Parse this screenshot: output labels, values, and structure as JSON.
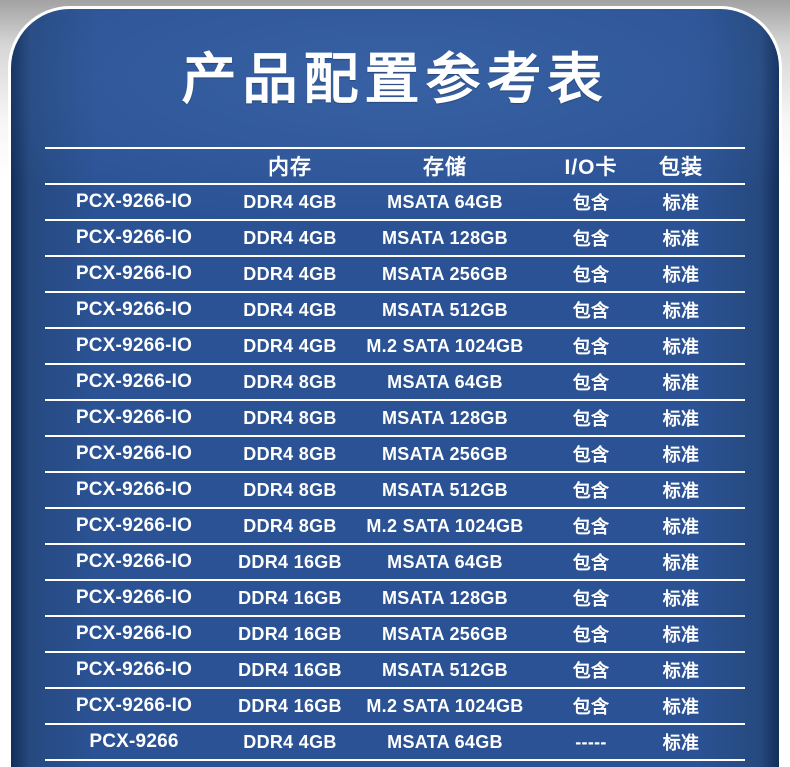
{
  "title": "产品配置参考表",
  "table": {
    "column_keys": [
      "product",
      "memory",
      "storage",
      "io_card",
      "packaging"
    ],
    "columns": [
      "",
      "内存",
      "存储",
      "I/O卡",
      "包装"
    ],
    "rows": [
      [
        "PCX-9266-IO",
        "DDR4 4GB",
        "MSATA 64GB",
        "包含",
        "标准"
      ],
      [
        "PCX-9266-IO",
        "DDR4 4GB",
        "MSATA 128GB",
        "包含",
        "标准"
      ],
      [
        "PCX-9266-IO",
        "DDR4 4GB",
        "MSATA 256GB",
        "包含",
        "标准"
      ],
      [
        "PCX-9266-IO",
        "DDR4 4GB",
        "MSATA 512GB",
        "包含",
        "标准"
      ],
      [
        "PCX-9266-IO",
        "DDR4 4GB",
        "M.2 SATA 1024GB",
        "包含",
        "标准"
      ],
      [
        "PCX-9266-IO",
        "DDR4 8GB",
        "MSATA 64GB",
        "包含",
        "标准"
      ],
      [
        "PCX-9266-IO",
        "DDR4 8GB",
        "MSATA 128GB",
        "包含",
        "标准"
      ],
      [
        "PCX-9266-IO",
        "DDR4 8GB",
        "MSATA 256GB",
        "包含",
        "标准"
      ],
      [
        "PCX-9266-IO",
        "DDR4 8GB",
        "MSATA 512GB",
        "包含",
        "标准"
      ],
      [
        "PCX-9266-IO",
        "DDR4 8GB",
        "M.2 SATA 1024GB",
        "包含",
        "标准"
      ],
      [
        "PCX-9266-IO",
        "DDR4 16GB",
        "MSATA 64GB",
        "包含",
        "标准"
      ],
      [
        "PCX-9266-IO",
        "DDR4 16GB",
        "MSATA 128GB",
        "包含",
        "标准"
      ],
      [
        "PCX-9266-IO",
        "DDR4 16GB",
        "MSATA 256GB",
        "包含",
        "标准"
      ],
      [
        "PCX-9266-IO",
        "DDR4 16GB",
        "MSATA 512GB",
        "包含",
        "标准"
      ],
      [
        "PCX-9266-IO",
        "DDR4 16GB",
        "M.2 SATA 1024GB",
        "包含",
        "标准"
      ],
      [
        "PCX-9266",
        "DDR4 4GB",
        "MSATA 64GB",
        "-----",
        "标准"
      ]
    ]
  },
  "colors": {
    "panel_center": "#2b5294",
    "panel_edge": "#132e5a",
    "panel_mid": "#26497f",
    "separator_line": "#ffffff",
    "text": "#ffffff",
    "outer_background_top": "#a2a2a2",
    "outer_background_bottom": "#ffffff"
  }
}
